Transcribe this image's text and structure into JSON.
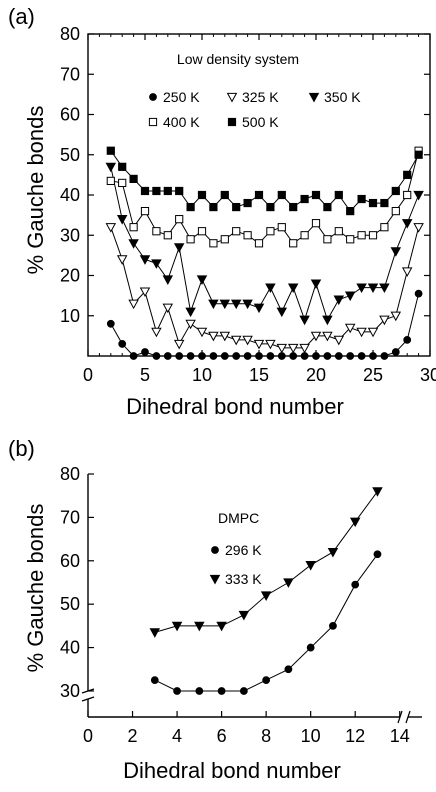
{
  "chart_data": [
    {
      "panel_label": "(a)",
      "type": "line",
      "annotation": "Low density system",
      "xlabel": "Dihedral bond number",
      "ylabel": "% Gauche bonds",
      "xlim": [
        0,
        30
      ],
      "ylim": [
        0,
        80
      ],
      "xticks": [
        0,
        5,
        10,
        15,
        20,
        25,
        30
      ],
      "yticks": [
        10,
        20,
        30,
        40,
        50,
        60,
        70,
        80
      ],
      "legend_position": "top-center",
      "x": [
        2,
        3,
        4,
        5,
        6,
        7,
        8,
        9,
        10,
        11,
        12,
        13,
        14,
        15,
        16,
        17,
        18,
        19,
        20,
        21,
        22,
        23,
        24,
        25,
        26,
        27,
        28,
        29
      ],
      "series": [
        {
          "name": "250 K",
          "marker": "circle-filled",
          "values": [
            8,
            3,
            0,
            1,
            0,
            0,
            0,
            0,
            0,
            0,
            0,
            0,
            0,
            0,
            0,
            0,
            0,
            0,
            0,
            0,
            0,
            0,
            0,
            0,
            0,
            1,
            4,
            15.5
          ]
        },
        {
          "name": "325 K",
          "marker": "triangle-down-open",
          "values": [
            32,
            24,
            13,
            16,
            6,
            12,
            3,
            8,
            6,
            5,
            5,
            4,
            4,
            3,
            3,
            2,
            2,
            2,
            5,
            5,
            4,
            7,
            6,
            6,
            9,
            10,
            21,
            32
          ]
        },
        {
          "name": "350 K",
          "marker": "triangle-down-filled",
          "values": [
            47,
            34,
            28,
            24,
            23,
            19,
            27,
            11,
            19,
            13,
            13,
            13,
            13,
            12,
            17,
            11,
            17,
            9,
            18,
            9,
            14,
            15,
            17,
            17,
            17,
            26,
            33,
            40
          ]
        },
        {
          "name": "400 K",
          "marker": "square-open",
          "values": [
            43.5,
            43,
            32,
            36,
            31,
            30,
            34,
            29,
            31,
            28,
            29,
            31,
            30,
            28,
            31,
            32,
            28,
            30,
            33,
            29,
            31,
            29,
            30,
            30,
            32,
            36,
            40,
            51
          ]
        },
        {
          "name": "500 K",
          "marker": "square-filled",
          "values": [
            51,
            47,
            44,
            41,
            41,
            41,
            41,
            37,
            40,
            37,
            40,
            37,
            38,
            40,
            37,
            40,
            37,
            39,
            40,
            37,
            40,
            36,
            39,
            38,
            38,
            41,
            45,
            50
          ]
        }
      ],
      "y_axis_break": false
    },
    {
      "panel_label": "(b)",
      "type": "line",
      "annotation": "DMPC",
      "xlabel": "Dihedral bond number",
      "ylabel": "% Gauche bonds",
      "xlim": [
        0,
        15
      ],
      "ylim": [
        24,
        80
      ],
      "xticks": [
        0,
        2,
        4,
        6,
        8,
        10,
        12,
        14
      ],
      "yticks": [
        30,
        40,
        50,
        60,
        70,
        80
      ],
      "legend_position": "top-left",
      "y_axis_break": true,
      "series": [
        {
          "name": "296 K",
          "marker": "circle-filled",
          "x": [
            3,
            4,
            5,
            6,
            7,
            8,
            9,
            10,
            11,
            12,
            13
          ],
          "values": [
            32.5,
            30,
            30,
            30,
            30,
            32.5,
            35,
            40,
            45,
            54.5,
            61.5
          ]
        },
        {
          "name": "333 K",
          "marker": "triangle-down-filled",
          "x": [
            3,
            4,
            5,
            6,
            7,
            8,
            9,
            10,
            11,
            12,
            13
          ],
          "values": [
            43.5,
            45,
            45,
            45,
            47.5,
            52,
            55,
            59,
            62,
            69,
            76
          ]
        }
      ]
    }
  ]
}
